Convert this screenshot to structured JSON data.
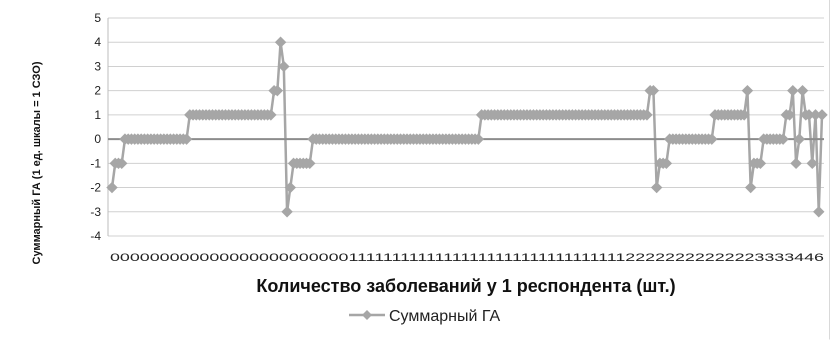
{
  "chart_data": {
    "type": "line",
    "xlabel": "Количество заболеваний у 1 респондента (шт.)",
    "ylabel": "Суммарный ГА (1 ед. шкалы = 1 СЗО)",
    "ylim": [
      -4,
      5
    ],
    "yticks": [
      "5",
      "4",
      "3",
      "2",
      "1",
      "0",
      "-1",
      "-2",
      "-3",
      "-4"
    ],
    "grid": true,
    "legend_position": "bottom",
    "x_tick_text": "0000000000000000000000001111111111111111111111111111111122222222222223333446",
    "series": [
      {
        "name": "Суммарный ГА",
        "color": "#a6a6a6",
        "values": [
          -2,
          -1,
          -1,
          -1,
          0,
          0,
          0,
          0,
          0,
          0,
          0,
          0,
          0,
          0,
          0,
          0,
          0,
          0,
          0,
          0,
          0,
          0,
          0,
          0,
          1,
          1,
          1,
          1,
          1,
          1,
          1,
          1,
          1,
          1,
          1,
          1,
          1,
          1,
          1,
          1,
          1,
          1,
          1,
          1,
          1,
          1,
          1,
          1,
          1,
          1,
          2,
          2,
          4,
          3,
          -3,
          -2,
          -1,
          -1,
          -1,
          -1,
          -1,
          -1,
          0,
          0,
          0,
          0,
          0,
          0,
          0,
          0,
          0,
          0,
          0,
          0,
          0,
          0,
          0,
          0,
          0,
          0,
          0,
          0,
          0,
          0,
          0,
          0,
          0,
          0,
          0,
          0,
          0,
          0,
          0,
          0,
          0,
          0,
          0,
          0,
          0,
          0,
          0,
          0,
          0,
          0,
          0,
          0,
          0,
          0,
          0,
          0,
          0,
          0,
          0,
          0,
          1,
          1,
          1,
          1,
          1,
          1,
          1,
          1,
          1,
          1,
          1,
          1,
          1,
          1,
          1,
          1,
          1,
          1,
          1,
          1,
          1,
          1,
          1,
          1,
          1,
          1,
          1,
          1,
          1,
          1,
          1,
          1,
          1,
          1,
          1,
          1,
          1,
          1,
          1,
          1,
          1,
          1,
          1,
          1,
          1,
          1,
          1,
          1,
          1,
          1,
          1,
          1,
          2,
          2,
          -2,
          -1,
          -1,
          -1,
          0,
          0,
          0,
          0,
          0,
          0,
          0,
          0,
          0,
          0,
          0,
          0,
          0,
          0,
          1,
          1,
          1,
          1,
          1,
          1,
          1,
          1,
          1,
          1,
          2,
          -2,
          -1,
          -1,
          -1,
          0,
          0,
          0,
          0,
          0,
          0,
          0,
          1,
          1,
          2,
          -1,
          0,
          2,
          1,
          1,
          -1,
          1,
          -3,
          1
        ]
      }
    ]
  }
}
